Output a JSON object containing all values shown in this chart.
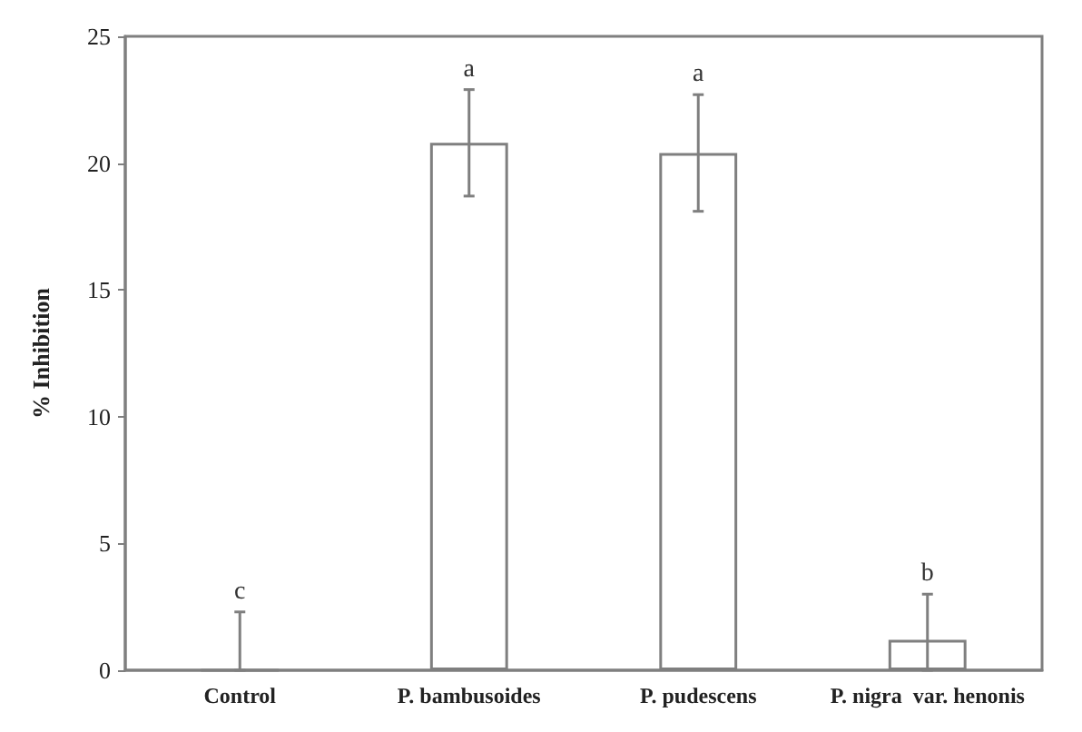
{
  "chart_data": {
    "type": "bar",
    "ylabel": "% Inhibition",
    "categories": [
      "Control",
      "P. bambusoides",
      "P. pudescens",
      "P. nigra  var. henonis"
    ],
    "values": [
      0,
      20.8,
      20.4,
      1.2
    ],
    "errors": [
      [
        0,
        2.3
      ],
      2.1,
      2.3,
      [
        0,
        3.0
      ]
    ],
    "color": "#ffffff",
    "ylim": [
      0,
      25
    ],
    "yticks": [
      0,
      5,
      10,
      15,
      20,
      25
    ],
    "grid": false,
    "annotations": [
      "c",
      "a",
      "a",
      "b"
    ]
  }
}
